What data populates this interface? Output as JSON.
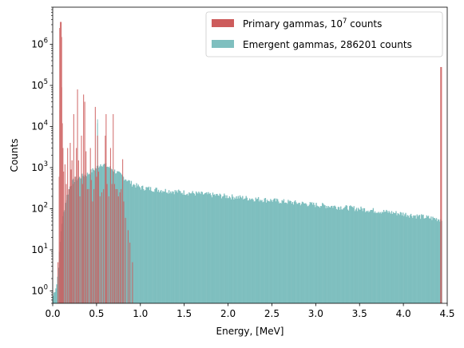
{
  "chart_data": {
    "type": "bar",
    "xlabel": "Energy, [MeV]",
    "ylabel": "Counts",
    "xlim": [
      0,
      4.5
    ],
    "ylim": [
      0.5,
      8000000
    ],
    "yscale": "log",
    "grid": false,
    "legend_placement": "top-right",
    "x_ticks": [
      "0.0",
      "0.5",
      "1.0",
      "1.5",
      "2.0",
      "2.5",
      "3.0",
      "3.5",
      "4.0",
      "4.5"
    ],
    "y_ticks": [
      {
        "base": "10",
        "exp": "0"
      },
      {
        "base": "10",
        "exp": "1"
      },
      {
        "base": "10",
        "exp": "2"
      },
      {
        "base": "10",
        "exp": "3"
      },
      {
        "base": "10",
        "exp": "4"
      },
      {
        "base": "10",
        "exp": "5"
      },
      {
        "base": "10",
        "exp": "6"
      }
    ],
    "series": [
      {
        "name_prefix": "Primary gammas, 10",
        "name_sup": "7",
        "name_suffix": " counts",
        "color": "#cd5c5c",
        "bins": [
          [
            0.06,
            5
          ],
          [
            0.074,
            600
          ],
          [
            0.081,
            25000
          ],
          [
            0.085,
            2500000
          ],
          [
            0.092,
            3500000
          ],
          [
            0.097,
            1500000
          ],
          [
            0.103,
            90000
          ],
          [
            0.11,
            12000
          ],
          [
            0.117,
            3000
          ],
          [
            0.124,
            800
          ],
          [
            0.14,
            1200
          ],
          [
            0.155,
            400
          ],
          [
            0.17,
            3000
          ],
          [
            0.186,
            300
          ],
          [
            0.2,
            4000
          ],
          [
            0.21,
            900
          ],
          [
            0.22,
            1500
          ],
          [
            0.235,
            400
          ],
          [
            0.24,
            20000
          ],
          [
            0.255,
            600
          ],
          [
            0.27,
            3000
          ],
          [
            0.283,
            80000
          ],
          [
            0.295,
            1500
          ],
          [
            0.31,
            200
          ],
          [
            0.328,
            6000
          ],
          [
            0.34,
            400
          ],
          [
            0.352,
            60000
          ],
          [
            0.366,
            40000
          ],
          [
            0.38,
            2500
          ],
          [
            0.395,
            300
          ],
          [
            0.41,
            300
          ],
          [
            0.43,
            3000
          ],
          [
            0.44,
            500
          ],
          [
            0.455,
            150
          ],
          [
            0.47,
            300
          ],
          [
            0.486,
            30000
          ],
          [
            0.5,
            600
          ],
          [
            0.511,
            6000
          ],
          [
            0.523,
            800
          ],
          [
            0.54,
            200
          ],
          [
            0.56,
            250
          ],
          [
            0.58,
            300
          ],
          [
            0.6,
            6000
          ],
          [
            0.609,
            20000
          ],
          [
            0.62,
            400
          ],
          [
            0.64,
            200
          ],
          [
            0.66,
            3000
          ],
          [
            0.675,
            400
          ],
          [
            0.69,
            20000
          ],
          [
            0.705,
            400
          ],
          [
            0.72,
            300
          ],
          [
            0.736,
            300
          ],
          [
            0.75,
            200
          ],
          [
            0.766,
            250
          ],
          [
            0.78,
            300
          ],
          [
            0.798,
            1600
          ],
          [
            0.81,
            150
          ],
          [
            0.83,
            60
          ],
          [
            0.86,
            30
          ],
          [
            0.88,
            15
          ],
          [
            0.91,
            5
          ],
          [
            4.43,
            280000
          ]
        ]
      },
      {
        "name": "Emergent gammas, 286201 counts",
        "color": "#7fbfbf",
        "continuum": [
          [
            0.0,
            0.7
          ],
          [
            0.05,
            1.6
          ],
          [
            0.1,
            40
          ],
          [
            0.15,
            160
          ],
          [
            0.2,
            380
          ],
          [
            0.25,
            520
          ],
          [
            0.3,
            560
          ],
          [
            0.35,
            650
          ],
          [
            0.4,
            700
          ],
          [
            0.45,
            850
          ],
          [
            0.5,
            1000
          ],
          [
            0.55,
            1250
          ],
          [
            0.6,
            1150
          ],
          [
            0.65,
            1000
          ],
          [
            0.7,
            850
          ],
          [
            0.75,
            720
          ],
          [
            0.8,
            600
          ],
          [
            0.85,
            500
          ],
          [
            0.9,
            410
          ],
          [
            1.0,
            330
          ],
          [
            1.2,
            290
          ],
          [
            1.5,
            250
          ],
          [
            2.0,
            200
          ],
          [
            2.5,
            160
          ],
          [
            3.0,
            125
          ],
          [
            3.5,
            100
          ],
          [
            4.0,
            75
          ],
          [
            4.3,
            60
          ],
          [
            4.43,
            55
          ]
        ],
        "spikes": [
          [
            0.511,
            15000
          ],
          [
            0.511,
            12000
          ]
        ]
      }
    ]
  }
}
